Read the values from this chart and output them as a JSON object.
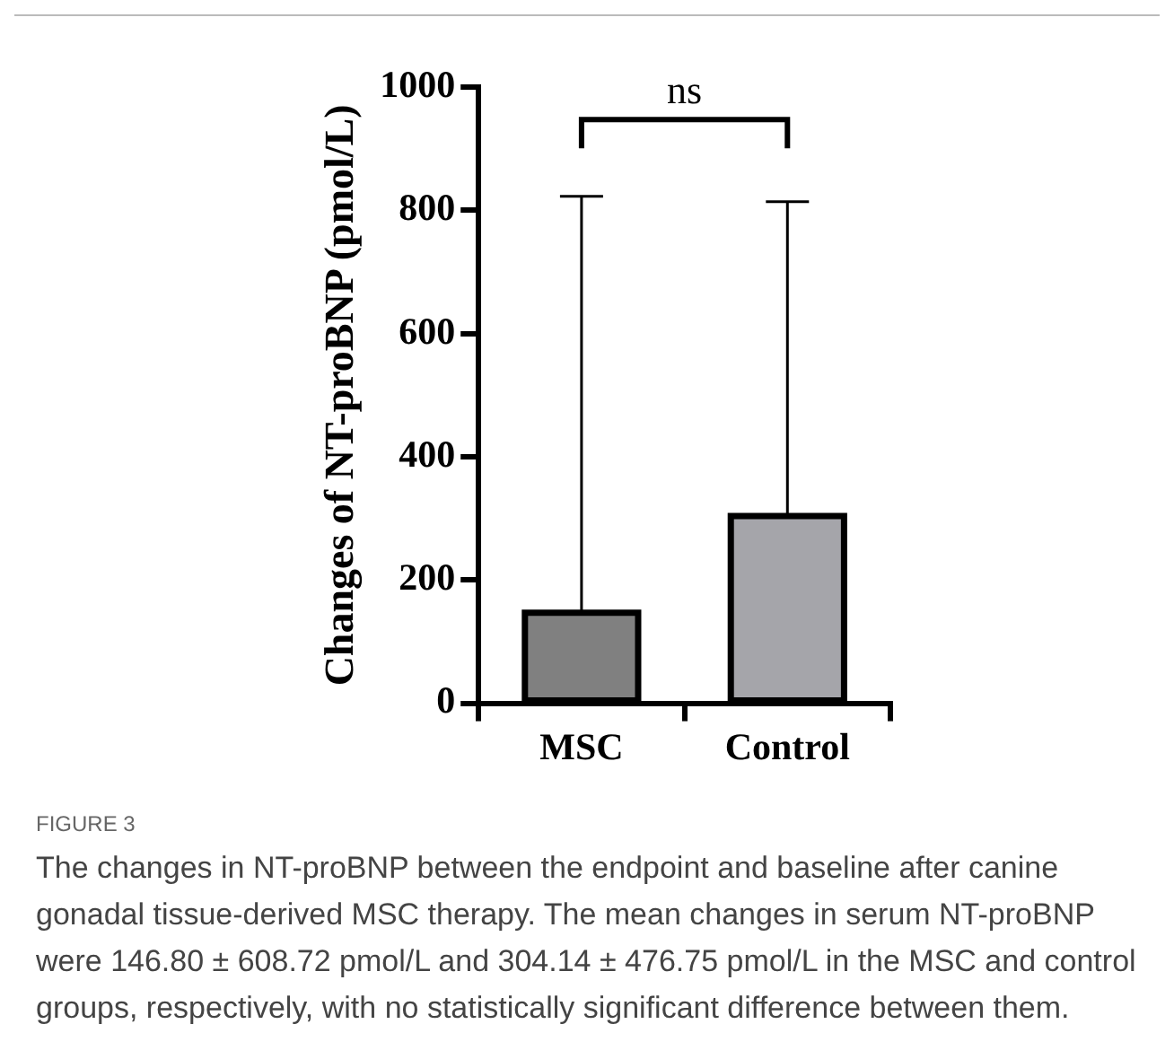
{
  "chart_data": {
    "type": "bar",
    "ylabel": "Changes of NT-proBNP (pmol/L)",
    "categories": [
      "MSC",
      "Control"
    ],
    "values": [
      147,
      304
    ],
    "colors": [
      "#808080",
      "#a5a5aa"
    ],
    "errors": [
      [
        147,
        823
      ],
      [
        304,
        814
      ]
    ],
    "ylim": [
      0,
      1000
    ],
    "yticks": [
      0,
      200,
      400,
      600,
      800,
      1000
    ],
    "grid": false,
    "legend": false,
    "annotations": [
      "ns",
      "FIGURE 3",
      "The changes in NT-proBNP between the endpoint and baseline after canine gonadal tissue-derived MSC therapy. The mean changes in serum NT-proBNP were 146.80 ± 608.72 pmol/L and 304.14 ± 476.75 pmol/L in the MSC and control groups, respectively, with no statistically significant difference between them."
    ]
  }
}
